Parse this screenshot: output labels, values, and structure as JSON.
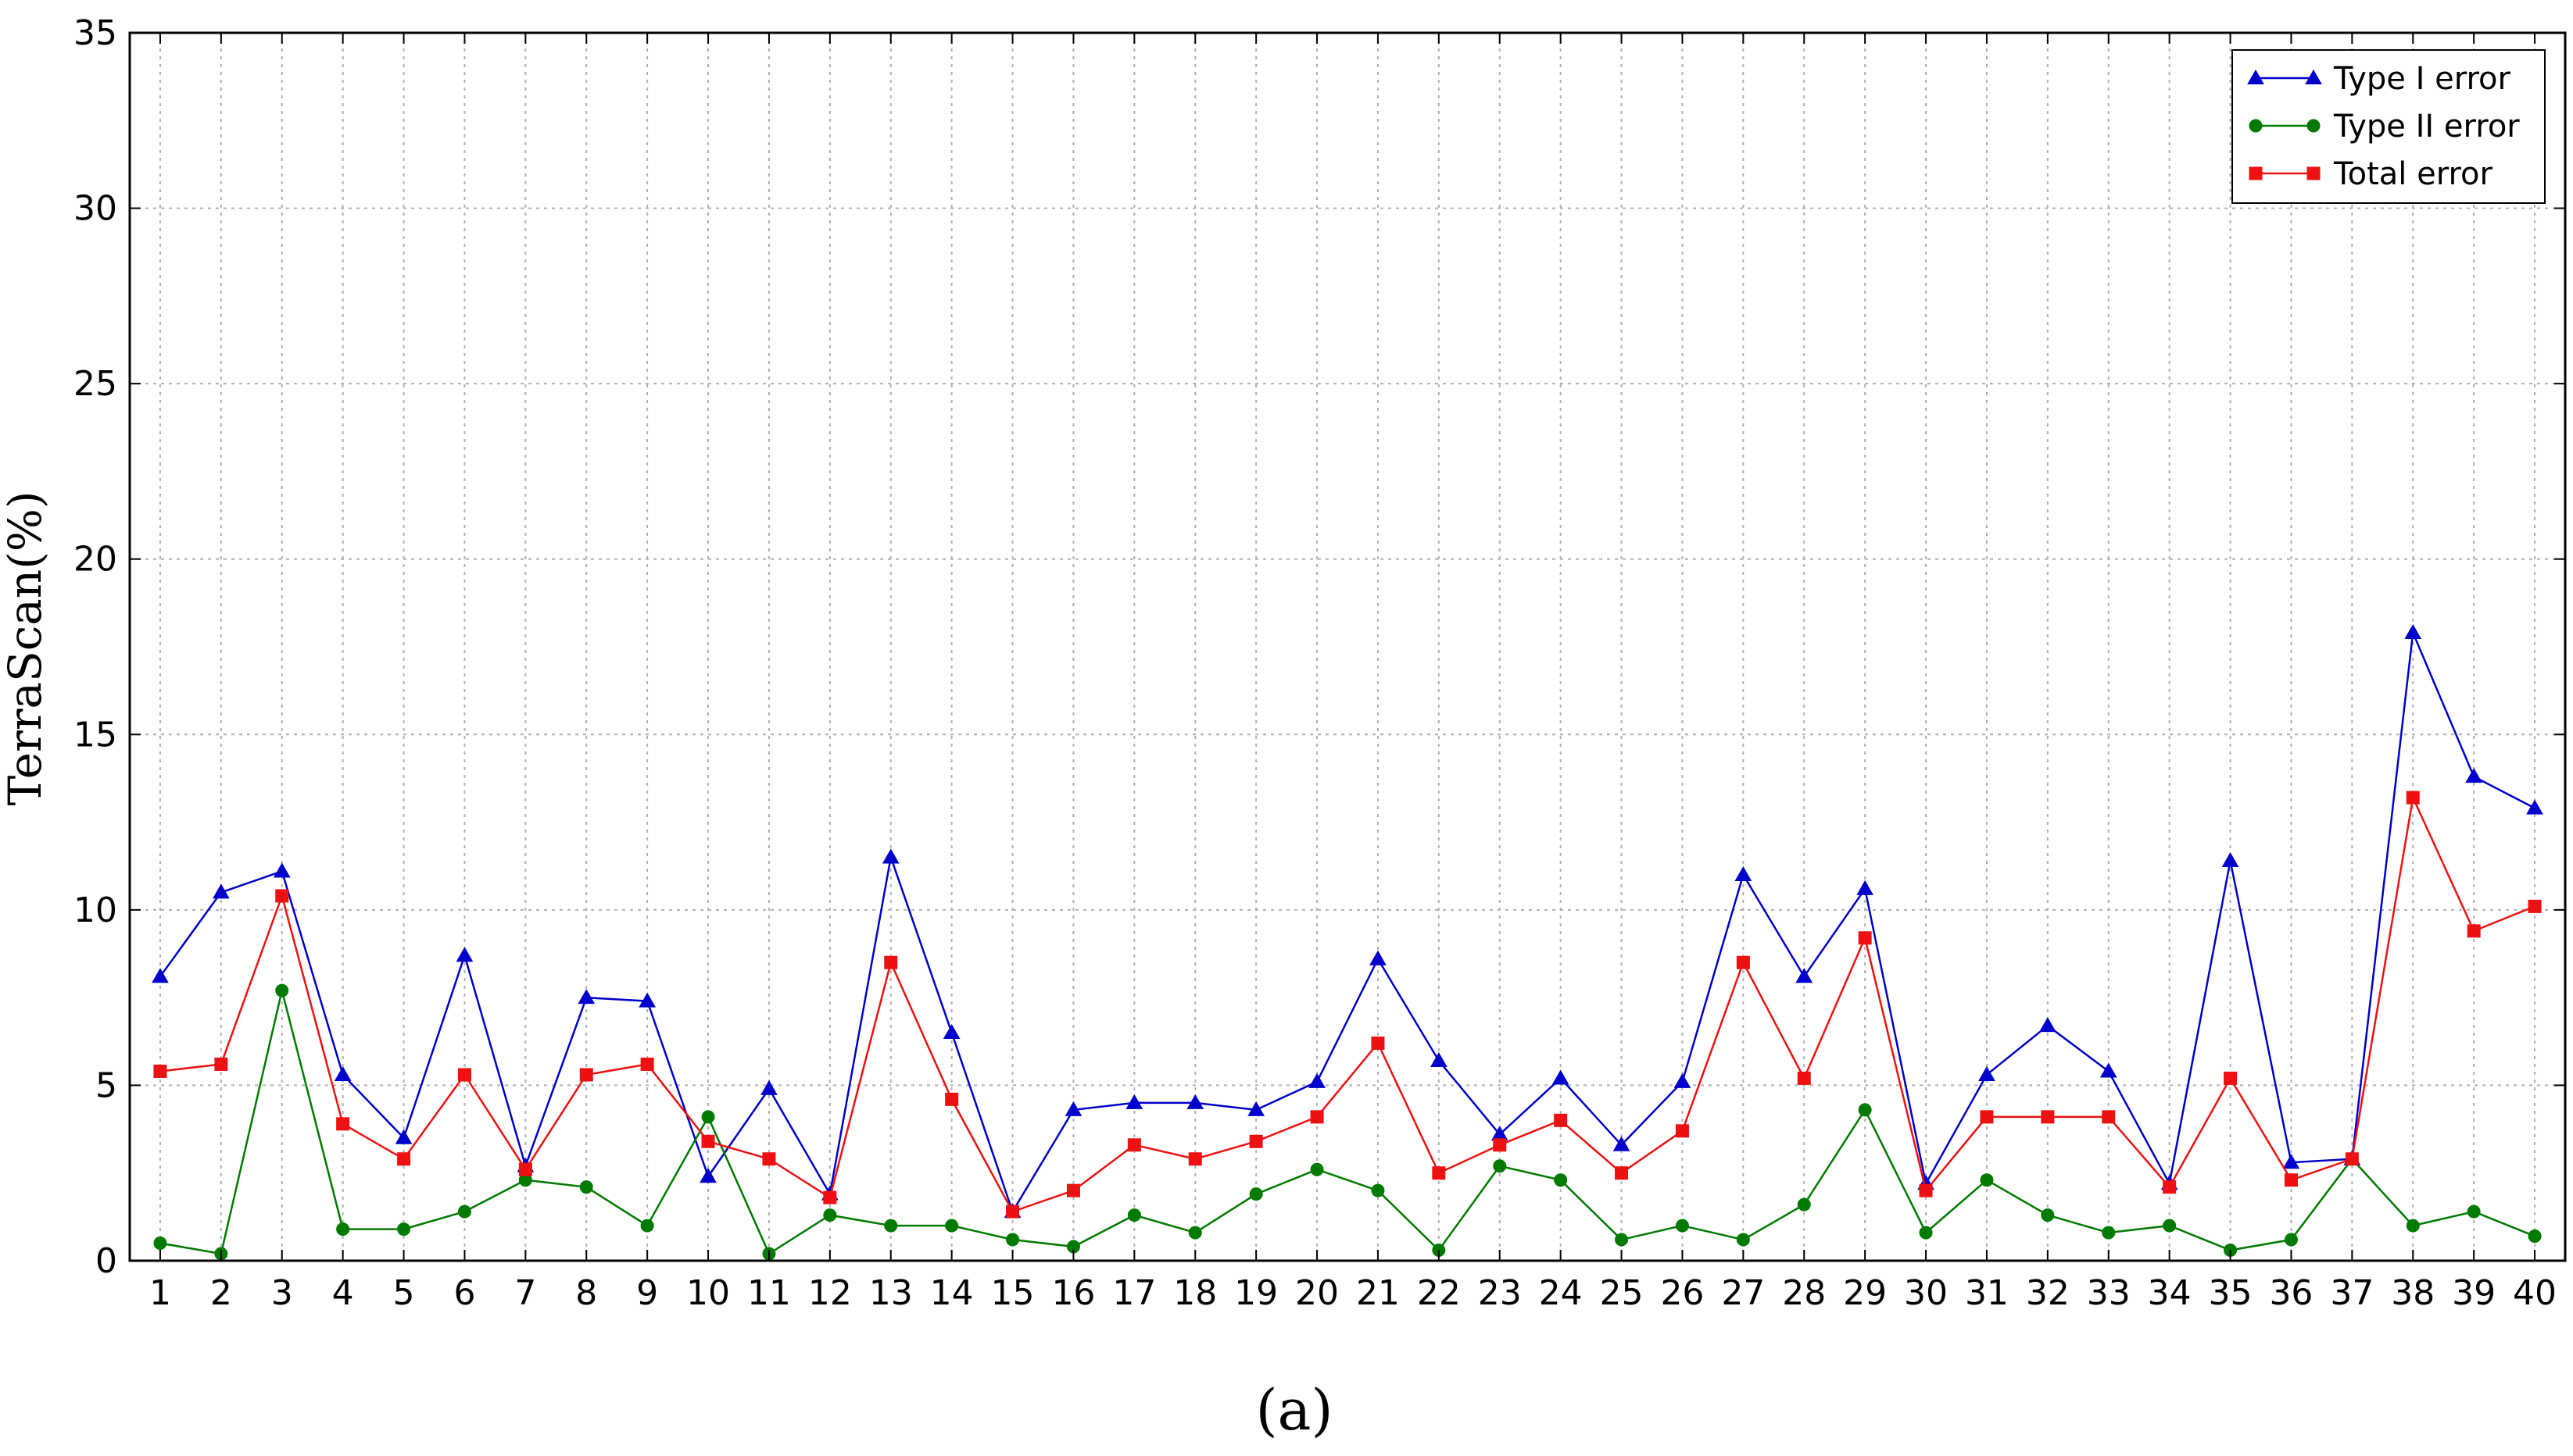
{
  "chart_data": {
    "type": "line",
    "title": "",
    "xlabel": "",
    "ylabel": "TerraScan(%)",
    "caption": "(a)",
    "x": [
      1,
      2,
      3,
      4,
      5,
      6,
      7,
      8,
      9,
      10,
      11,
      12,
      13,
      14,
      15,
      16,
      17,
      18,
      19,
      20,
      21,
      22,
      23,
      24,
      25,
      26,
      27,
      28,
      29,
      30,
      31,
      32,
      33,
      34,
      35,
      36,
      37,
      38,
      39,
      40
    ],
    "xlim": [
      0.5,
      40.5
    ],
    "ylim": [
      0,
      35
    ],
    "yticks": [
      0,
      5,
      10,
      15,
      20,
      25,
      30,
      35
    ],
    "grid": true,
    "legend_position": "top-right",
    "series": [
      {
        "name": "Type I error",
        "color": "#0000cc",
        "marker": "triangle",
        "values": [
          8.1,
          10.5,
          11.1,
          5.3,
          3.5,
          8.7,
          2.7,
          7.5,
          7.4,
          2.4,
          4.9,
          1.9,
          11.5,
          6.5,
          1.4,
          4.3,
          4.5,
          4.5,
          4.3,
          5.1,
          8.6,
          5.7,
          3.6,
          5.2,
          3.3,
          5.1,
          11.0,
          8.1,
          10.6,
          2.2,
          5.3,
          6.7,
          5.4,
          2.2,
          11.4,
          2.8,
          2.9,
          17.9,
          13.8,
          12.9
        ]
      },
      {
        "name": "Type II error",
        "color": "#007a00",
        "marker": "circle",
        "values": [
          0.5,
          0.2,
          7.7,
          0.9,
          0.9,
          1.4,
          2.3,
          2.1,
          1.0,
          4.1,
          0.2,
          1.3,
          1.0,
          1.0,
          0.6,
          0.4,
          1.3,
          0.8,
          1.9,
          2.6,
          2.0,
          0.3,
          2.7,
          2.3,
          0.6,
          1.0,
          0.6,
          1.6,
          4.3,
          0.8,
          2.3,
          1.3,
          0.8,
          1.0,
          0.3,
          0.6,
          2.9,
          1.0,
          1.4,
          0.7
        ]
      },
      {
        "name": "Total error",
        "color": "#ee1111",
        "marker": "square",
        "values": [
          5.4,
          5.6,
          10.4,
          3.9,
          2.9,
          5.3,
          2.6,
          5.3,
          5.6,
          3.4,
          2.9,
          1.8,
          8.5,
          4.6,
          1.4,
          2.0,
          3.3,
          2.9,
          3.4,
          4.1,
          6.2,
          2.5,
          3.3,
          4.0,
          2.5,
          3.7,
          8.5,
          5.2,
          9.2,
          2.0,
          4.1,
          4.1,
          4.1,
          2.1,
          5.2,
          2.3,
          2.9,
          13.2,
          9.4,
          10.1
        ]
      }
    ]
  }
}
